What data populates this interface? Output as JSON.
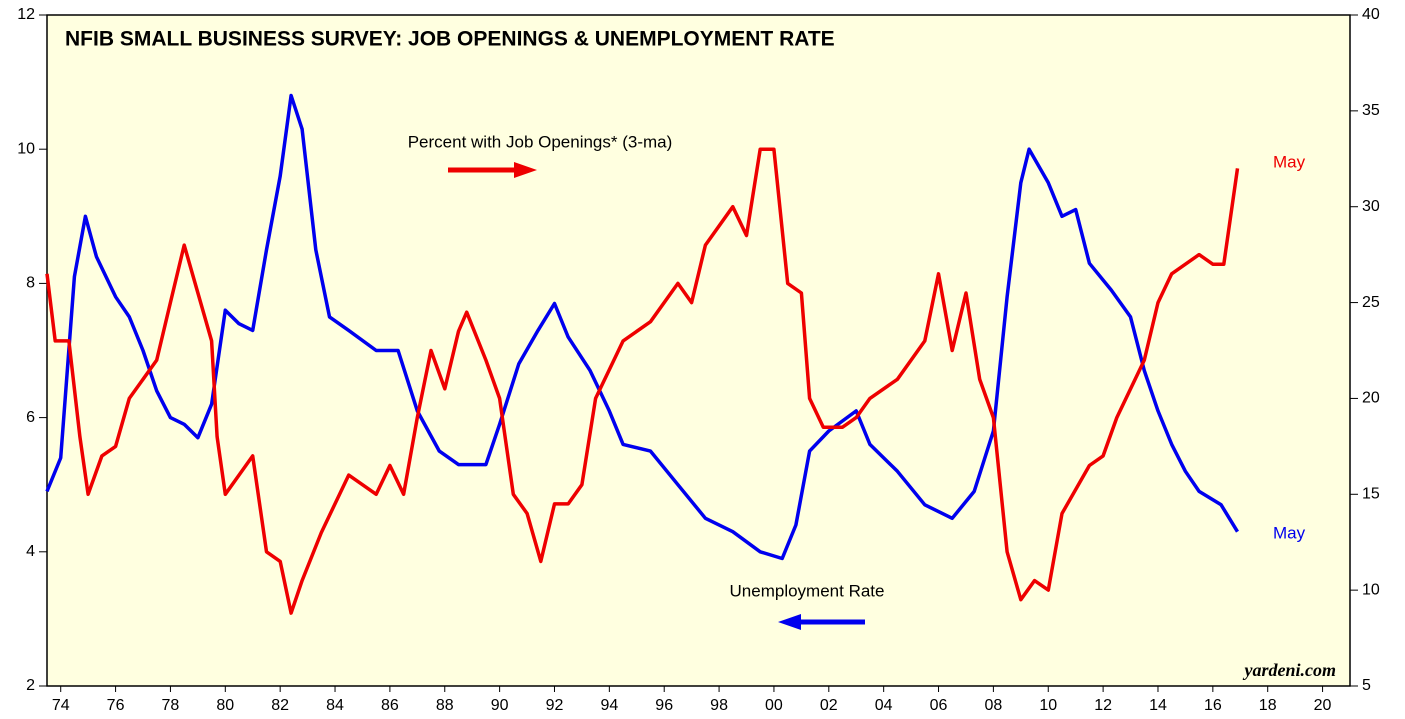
{
  "chart_data": {
    "type": "line",
    "title": "NFIB SMALL BUSINESS SURVEY: JOB OPENINGS & UNEMPLOYMENT RATE",
    "annotations": [
      "Percent with Job Openings* (3-ma)",
      "Unemployment Rate",
      "May",
      "May",
      "yardeni.com"
    ],
    "xlim": [
      1974,
      2021.5
    ],
    "xticks": [
      {
        "value": 1974.5,
        "label": "74"
      },
      {
        "value": 1976.5,
        "label": "76"
      },
      {
        "value": 1978.5,
        "label": "78"
      },
      {
        "value": 1980.5,
        "label": "80"
      },
      {
        "value": 1982.5,
        "label": "82"
      },
      {
        "value": 1984.5,
        "label": "84"
      },
      {
        "value": 1986.5,
        "label": "86"
      },
      {
        "value": 1988.5,
        "label": "88"
      },
      {
        "value": 1990.5,
        "label": "90"
      },
      {
        "value": 1992.5,
        "label": "92"
      },
      {
        "value": 1994.5,
        "label": "94"
      },
      {
        "value": 1996.5,
        "label": "96"
      },
      {
        "value": 1998.5,
        "label": "98"
      },
      {
        "value": 2000.5,
        "label": "00"
      },
      {
        "value": 2002.5,
        "label": "02"
      },
      {
        "value": 2004.5,
        "label": "04"
      },
      {
        "value": 2006.5,
        "label": "06"
      },
      {
        "value": 2008.5,
        "label": "08"
      },
      {
        "value": 2010.5,
        "label": "10"
      },
      {
        "value": 2012.5,
        "label": "12"
      },
      {
        "value": 2014.5,
        "label": "14"
      },
      {
        "value": 2016.5,
        "label": "16"
      },
      {
        "value": 2018.5,
        "label": "18"
      },
      {
        "value": 2020.5,
        "label": "20"
      }
    ],
    "ylim": [
      2,
      12
    ],
    "yticks": [
      2,
      4,
      6,
      8,
      10,
      12
    ],
    "y2lim": [
      5,
      40
    ],
    "y2ticks": [
      5,
      10,
      15,
      20,
      25,
      30,
      35,
      40
    ],
    "series": [
      {
        "name": "Unemployment Rate",
        "color": "#0000ee",
        "axis": "y",
        "x": [
          1974.0,
          1974.5,
          1975.0,
          1975.4,
          1975.8,
          1976.5,
          1977.0,
          1977.5,
          1978.0,
          1978.5,
          1979.0,
          1979.5,
          1980.0,
          1980.5,
          1981.0,
          1981.5,
          1982.0,
          1982.5,
          1982.9,
          1983.3,
          1983.8,
          1984.3,
          1985.0,
          1986.0,
          1986.8,
          1987.5,
          1988.3,
          1989.0,
          1990.0,
          1990.5,
          1991.2,
          1991.9,
          1992.5,
          1993.0,
          1993.8,
          1994.5,
          1995.0,
          1996.0,
          1997.0,
          1998.0,
          1999.0,
          2000.0,
          2000.8,
          2001.3,
          2001.8,
          2002.5,
          2003.5,
          2004.0,
          2005.0,
          2006.0,
          2007.0,
          2007.8,
          2008.5,
          2009.0,
          2009.5,
          2009.8,
          2010.5,
          2011.0,
          2011.5,
          2012.0,
          2012.8,
          2013.5,
          2014.0,
          2014.5,
          2015.0,
          2015.5,
          2016.0,
          2016.8,
          2017.4
        ],
        "values": [
          4.9,
          5.4,
          8.1,
          9.0,
          8.4,
          7.8,
          7.5,
          7.0,
          6.4,
          6.0,
          5.9,
          5.7,
          6.2,
          7.6,
          7.4,
          7.3,
          8.5,
          9.6,
          10.8,
          10.3,
          8.5,
          7.5,
          7.3,
          7.0,
          7.0,
          6.1,
          5.5,
          5.3,
          5.3,
          5.9,
          6.8,
          7.3,
          7.7,
          7.2,
          6.7,
          6.1,
          5.6,
          5.5,
          5.0,
          4.5,
          4.3,
          4.0,
          3.9,
          4.4,
          5.5,
          5.8,
          6.1,
          5.6,
          5.2,
          4.7,
          4.5,
          4.9,
          5.8,
          7.8,
          9.5,
          10.0,
          9.5,
          9.0,
          9.1,
          8.3,
          7.9,
          7.5,
          6.7,
          6.1,
          5.6,
          5.2,
          4.9,
          4.7,
          4.3
        ]
      },
      {
        "name": "Percent with Job Openings",
        "color": "#ee0000",
        "axis": "y2",
        "x": [
          1974.0,
          1974.3,
          1974.8,
          1975.2,
          1975.5,
          1976.0,
          1976.5,
          1977.0,
          1977.5,
          1978.0,
          1978.5,
          1979.0,
          1979.5,
          1980.0,
          1980.2,
          1980.5,
          1981.0,
          1981.5,
          1982.0,
          1982.5,
          1982.9,
          1983.3,
          1984.0,
          1985.0,
          1986.0,
          1986.5,
          1987.0,
          1987.5,
          1988.0,
          1988.5,
          1989.0,
          1989.3,
          1990.0,
          1990.5,
          1991.0,
          1991.5,
          1992.0,
          1992.5,
          1993.0,
          1993.5,
          1994.0,
          1994.5,
          1995.0,
          1996.0,
          1997.0,
          1997.5,
          1998.0,
          1999.0,
          1999.5,
          2000.0,
          2000.5,
          2001.0,
          2001.5,
          2001.8,
          2002.3,
          2003.0,
          2003.5,
          2004.0,
          2005.0,
          2006.0,
          2006.5,
          2007.0,
          2007.5,
          2008.0,
          2008.5,
          2009.0,
          2009.5,
          2010.0,
          2010.5,
          2011.0,
          2012.0,
          2012.5,
          2013.0,
          2014.0,
          2014.5,
          2015.0,
          2016.0,
          2016.5,
          2016.9,
          2017.4
        ],
        "values": [
          26.5,
          23,
          23,
          18,
          15,
          17,
          17.5,
          20,
          21,
          22,
          25,
          28,
          25.5,
          23,
          18,
          15,
          16,
          17,
          12,
          11.5,
          8.8,
          10.5,
          13,
          16,
          15,
          16.5,
          15,
          19,
          22.5,
          20.5,
          23.5,
          24.5,
          22,
          20,
          15,
          14,
          11.5,
          14.5,
          14.5,
          15.5,
          20,
          21.5,
          23,
          24,
          26,
          25,
          28,
          30,
          28.5,
          33,
          33,
          26,
          25.5,
          20,
          18.5,
          18.5,
          19,
          20,
          21,
          23,
          26.5,
          22.5,
          25.5,
          21,
          19,
          12,
          9.5,
          10.5,
          10,
          14,
          16.5,
          17,
          19,
          22,
          25,
          26.5,
          27.5,
          27,
          27,
          32
        ]
      }
    ]
  }
}
